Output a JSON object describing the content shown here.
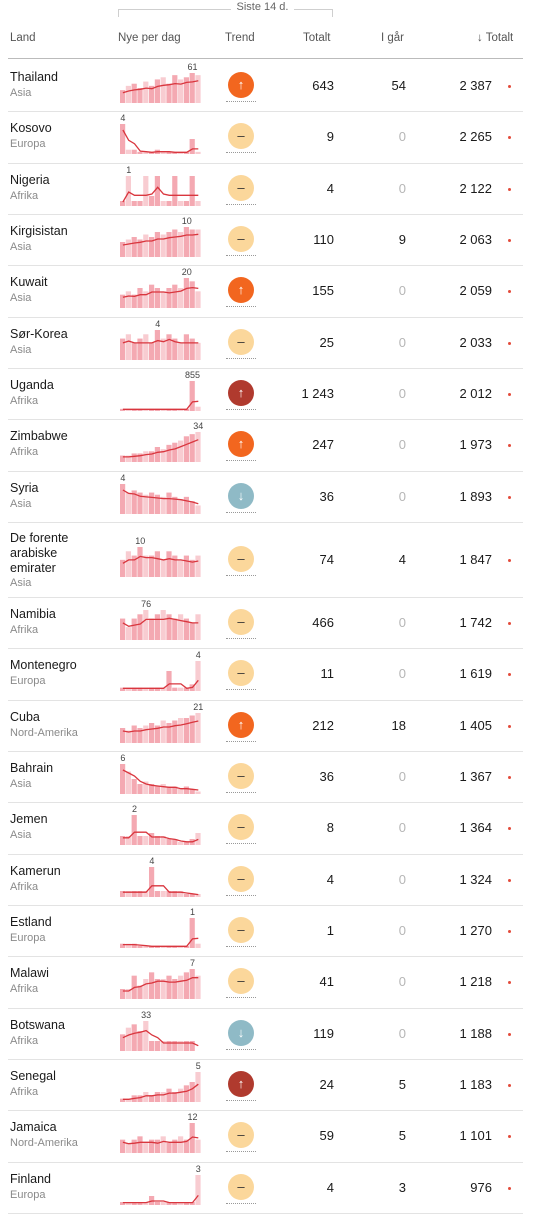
{
  "period_label": "Siste 14 d.",
  "columns": {
    "country": "Land",
    "new_per_day": "Nye per dag",
    "trend": "Trend",
    "total": "Totalt",
    "yesterday": "I går",
    "cumulative": "Totalt",
    "sort_icon": "arrow-down-icon"
  },
  "trend_symbols": {
    "up": "↑",
    "down": "↓",
    "flat": "–"
  },
  "colors": {
    "up": "#f2661f",
    "up_strong": "#b03a2e",
    "flat": "#fbd79b",
    "down": "#8fbac6",
    "line": "#d9363e",
    "bar": "#f4a9b2"
  },
  "rows": [
    {
      "country": "Thailand",
      "region": "Asia",
      "peak": "61",
      "trend": "up",
      "total": "643",
      "yesterday": "54",
      "cumulative": "2 387"
    },
    {
      "country": "Kosovo",
      "region": "Europa",
      "peak": "4",
      "trend": "flat",
      "total": "9",
      "yesterday": "0",
      "cumulative": "2 265"
    },
    {
      "country": "Nigeria",
      "region": "Afrika",
      "peak": "1",
      "trend": "flat",
      "total": "4",
      "yesterday": "0",
      "cumulative": "2 122"
    },
    {
      "country": "Kirgisistan",
      "region": "Asia",
      "peak": "10",
      "trend": "flat",
      "total": "110",
      "yesterday": "9",
      "cumulative": "2 063"
    },
    {
      "country": "Kuwait",
      "region": "Asia",
      "peak": "20",
      "trend": "up",
      "total": "155",
      "yesterday": "0",
      "cumulative": "2 059"
    },
    {
      "country": "Sør-Korea",
      "region": "Asia",
      "peak": "4",
      "trend": "flat",
      "total": "25",
      "yesterday": "0",
      "cumulative": "2 033"
    },
    {
      "country": "Uganda",
      "region": "Afrika",
      "peak": "855",
      "trend": "up_strong",
      "total": "1 243",
      "yesterday": "0",
      "cumulative": "2 012"
    },
    {
      "country": "Zimbabwe",
      "region": "Afrika",
      "peak": "34",
      "trend": "up",
      "total": "247",
      "yesterday": "0",
      "cumulative": "1 973"
    },
    {
      "country": "Syria",
      "region": "Asia",
      "peak": "4",
      "trend": "down",
      "total": "36",
      "yesterday": "0",
      "cumulative": "1 893"
    },
    {
      "country": "De forente arabiske emirater",
      "region": "Asia",
      "peak": "10",
      "trend": "flat",
      "total": "74",
      "yesterday": "4",
      "cumulative": "1 847"
    },
    {
      "country": "Namibia",
      "region": "Afrika",
      "peak": "76",
      "trend": "flat",
      "total": "466",
      "yesterday": "0",
      "cumulative": "1 742"
    },
    {
      "country": "Montenegro",
      "region": "Europa",
      "peak": "4",
      "trend": "flat",
      "total": "11",
      "yesterday": "0",
      "cumulative": "1 619"
    },
    {
      "country": "Cuba",
      "region": "Nord-Amerika",
      "peak": "21",
      "trend": "up",
      "total": "212",
      "yesterday": "18",
      "cumulative": "1 405"
    },
    {
      "country": "Bahrain",
      "region": "Asia",
      "peak": "6",
      "trend": "flat",
      "total": "36",
      "yesterday": "0",
      "cumulative": "1 367"
    },
    {
      "country": "Jemen",
      "region": "Asia",
      "peak": "2",
      "trend": "flat",
      "total": "8",
      "yesterday": "0",
      "cumulative": "1 364"
    },
    {
      "country": "Kamerun",
      "region": "Afrika",
      "peak": "4",
      "trend": "flat",
      "total": "4",
      "yesterday": "0",
      "cumulative": "1 324"
    },
    {
      "country": "Estland",
      "region": "Europa",
      "peak": "1",
      "trend": "flat",
      "total": "1",
      "yesterday": "0",
      "cumulative": "1 270"
    },
    {
      "country": "Malawi",
      "region": "Afrika",
      "peak": "7",
      "trend": "flat",
      "total": "41",
      "yesterday": "0",
      "cumulative": "1 218"
    },
    {
      "country": "Botswana",
      "region": "Afrika",
      "peak": "33",
      "trend": "down",
      "total": "119",
      "yesterday": "0",
      "cumulative": "1 188"
    },
    {
      "country": "Senegal",
      "region": "Afrika",
      "peak": "5",
      "trend": "up_strong",
      "total": "24",
      "yesterday": "5",
      "cumulative": "1 183"
    },
    {
      "country": "Jamaica",
      "region": "Nord-Amerika",
      "peak": "12",
      "trend": "flat",
      "total": "59",
      "yesterday": "5",
      "cumulative": "1 101"
    },
    {
      "country": "Finland",
      "region": "Europa",
      "peak": "3",
      "trend": "flat",
      "total": "4",
      "yesterday": "3",
      "cumulative": "976"
    }
  ]
}
